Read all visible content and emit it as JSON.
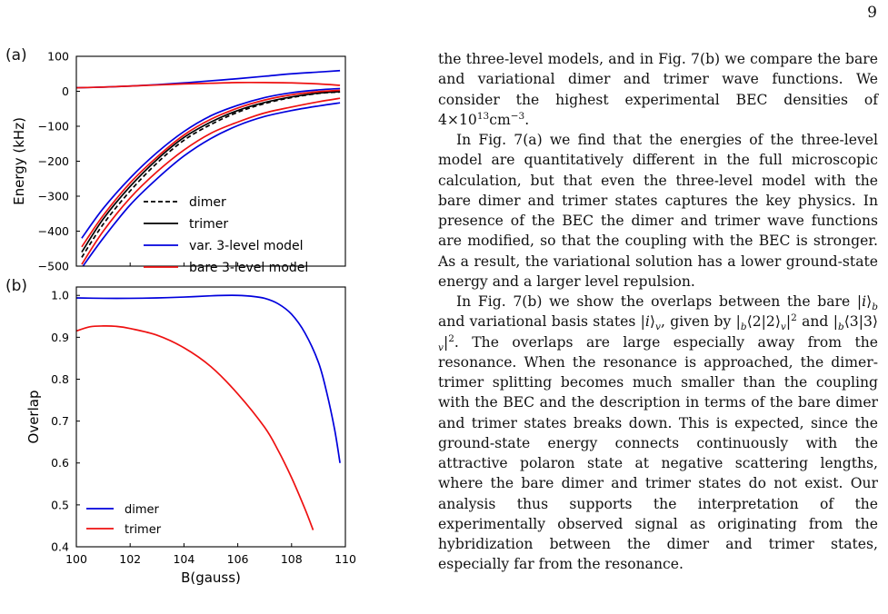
{
  "page": {
    "number": "9"
  },
  "figure": {
    "panel_a_label": "(a)",
    "panel_b_label": "(b)",
    "colors": {
      "dimer": "#000000",
      "trimer": "#000000",
      "var": "#0000dd",
      "bare": "#ee1111"
    }
  },
  "chart_data": [
    {
      "panel": "(a)",
      "type": "line",
      "ylabel": "Energy (kHz)",
      "xlim": [
        100,
        110
      ],
      "ylim": [
        -500,
        100
      ],
      "yticks": [
        "100",
        "0",
        "−100",
        "−200",
        "−300",
        "−400",
        "−500"
      ],
      "ytick_values": [
        100,
        0,
        -100,
        -200,
        -300,
        -400,
        -500
      ],
      "grid": false,
      "legend_position": "lower-right",
      "series": [
        {
          "name": "dimer",
          "style": "dashed",
          "color": "#000000",
          "x": [
            100.2,
            101,
            102,
            103,
            104,
            105,
            106,
            107,
            108,
            109,
            109.8
          ],
          "y": [
            -475,
            -380,
            -285,
            -205,
            -140,
            -95,
            -60,
            -35,
            -18,
            -6,
            -2
          ]
        },
        {
          "name": "trimer",
          "style": "solid",
          "color": "#000000",
          "x": [
            100.2,
            101,
            102,
            103,
            104,
            105,
            106,
            107,
            108,
            109,
            109.8
          ],
          "y": [
            -460,
            -365,
            -272,
            -195,
            -132,
            -88,
            -55,
            -32,
            -16,
            -5,
            -1
          ]
        },
        {
          "name": "var. 3-level model",
          "style": "solid",
          "color": "#0000dd",
          "x": [
            100.2,
            101,
            102,
            103,
            104,
            105,
            106,
            107,
            108,
            109,
            109.8
          ],
          "y": [
            -420,
            -335,
            -248,
            -175,
            -115,
            -70,
            -40,
            -18,
            -4,
            4,
            8
          ]
        },
        {
          "name": "",
          "style": "solid",
          "color": "#0000dd",
          "x": [
            100,
            101,
            102,
            103,
            104,
            105,
            106,
            107,
            108,
            109,
            109.8
          ],
          "y": [
            10,
            12,
            15,
            19,
            24,
            30,
            36,
            43,
            50,
            55,
            59
          ]
        },
        {
          "name": "",
          "style": "solid",
          "color": "#0000dd",
          "x": [
            100.2,
            101,
            102,
            103,
            104,
            105,
            106,
            107,
            108,
            109,
            109.8
          ],
          "y": [
            -505,
            -420,
            -325,
            -250,
            -185,
            -135,
            -98,
            -72,
            -55,
            -42,
            -33
          ]
        },
        {
          "name": "bare 3-level model",
          "style": "solid",
          "color": "#ee1111",
          "x": [
            100.2,
            101,
            102,
            103,
            104,
            105,
            106,
            107,
            108,
            109,
            109.8
          ],
          "y": [
            -445,
            -355,
            -262,
            -188,
            -125,
            -80,
            -48,
            -25,
            -10,
            -1,
            3
          ]
        },
        {
          "name": "",
          "style": "solid",
          "color": "#ee1111",
          "x": [
            100,
            101,
            102,
            103,
            104,
            105,
            106,
            107,
            108,
            109,
            109.8
          ],
          "y": [
            10,
            12,
            15,
            18,
            21,
            23,
            25,
            25,
            24,
            21,
            17
          ]
        },
        {
          "name": "",
          "style": "solid",
          "color": "#ee1111",
          "x": [
            100.2,
            101,
            102,
            103,
            104,
            105,
            106,
            107,
            108,
            109,
            109.8
          ],
          "y": [
            -495,
            -400,
            -305,
            -230,
            -168,
            -120,
            -88,
            -62,
            -45,
            -30,
            -20
          ]
        }
      ]
    },
    {
      "panel": "(b)",
      "type": "line",
      "xlabel": "B(gauss)",
      "ylabel": "Overlap",
      "xlim": [
        100,
        110
      ],
      "ylim": [
        0.4,
        1.02
      ],
      "xticks": [
        "100",
        "102",
        "104",
        "106",
        "108",
        "110"
      ],
      "xtick_values": [
        100,
        102,
        104,
        106,
        108,
        110
      ],
      "yticks": [
        "1.0",
        "0.9",
        "0.8",
        "0.7",
        "0.6",
        "0.5",
        "0.4"
      ],
      "ytick_values": [
        1.0,
        0.9,
        0.8,
        0.7,
        0.6,
        0.5,
        0.4
      ],
      "grid": false,
      "legend_position": "lower-left",
      "series": [
        {
          "name": "dimer",
          "color": "#0000dd",
          "x": [
            100,
            101,
            102,
            103,
            104,
            105,
            105.5,
            106,
            106.5,
            107,
            107.5,
            108,
            108.5,
            109,
            109.3,
            109.6,
            109.8
          ],
          "y": [
            0.994,
            0.993,
            0.993,
            0.994,
            0.996,
            0.999,
            1.0,
            1.0,
            0.998,
            0.993,
            0.98,
            0.955,
            0.91,
            0.84,
            0.77,
            0.68,
            0.6
          ]
        },
        {
          "name": "trimer",
          "color": "#ee1111",
          "x": [
            100,
            100.5,
            101,
            101.5,
            102,
            103,
            104,
            105,
            106,
            107,
            107.5,
            108,
            108.5,
            108.8
          ],
          "y": [
            0.915,
            0.925,
            0.927,
            0.926,
            0.921,
            0.905,
            0.875,
            0.83,
            0.765,
            0.685,
            0.63,
            0.565,
            0.49,
            0.44
          ]
        }
      ]
    }
  ],
  "text": {
    "p1": {
      "t1": "the three-level models, and in Fig. 7(b) we compare the bare and variational dimer and trimer wave functions. We consider the highest experimental BEC densities of 4×10",
      "exp1": "13",
      "t2": "cm",
      "exp2": "−3",
      "t3": "."
    },
    "p2": "In Fig. 7(a) we find that the energies of the three-level model are quantitatively different in the full microscopic calculation, but that even the three-level model with the bare dimer and trimer states captures the key physics. In presence of the BEC the dimer and trimer wave functions are modified, so that the coupling with the BEC is stronger. As a result, the variational solution has a lower ground-state energy and a larger level repulsion.",
    "p3": {
      "t1": "In Fig. 7(b) we show the overlaps between the bare |",
      "i1": "i",
      "t2": "⟩",
      "sub_b1": "b",
      "t3": " and variational basis states |",
      "i2": "i",
      "t4": "⟩",
      "sub_v1": "v",
      "t5": ", given by |",
      "sub_b2": "b",
      "t6": "⟨2|2⟩",
      "sub_v2": "v",
      "t7": "|",
      "sup1": "2",
      "t8": " and |",
      "sub_b3": "b",
      "t9": "⟨3|3⟩",
      "sub_v3": "v",
      "t10": "|",
      "sup2": "2",
      "t11": ". The overlaps are large especially away from the resonance. When the resonance is approached, the dimer-trimer splitting becomes much smaller than the coupling with the BEC and the description in terms of the bare dimer and trimer states breaks down. This is expected, since the ground-state energy connects continuously with the attractive polaron state at negative scattering lengths, where the bare dimer and trimer states do not exist. Our analysis thus supports the interpretation of the experimentally observed signal as originating from the hybridization between the dimer and trimer states, especially far from the resonance."
    }
  }
}
